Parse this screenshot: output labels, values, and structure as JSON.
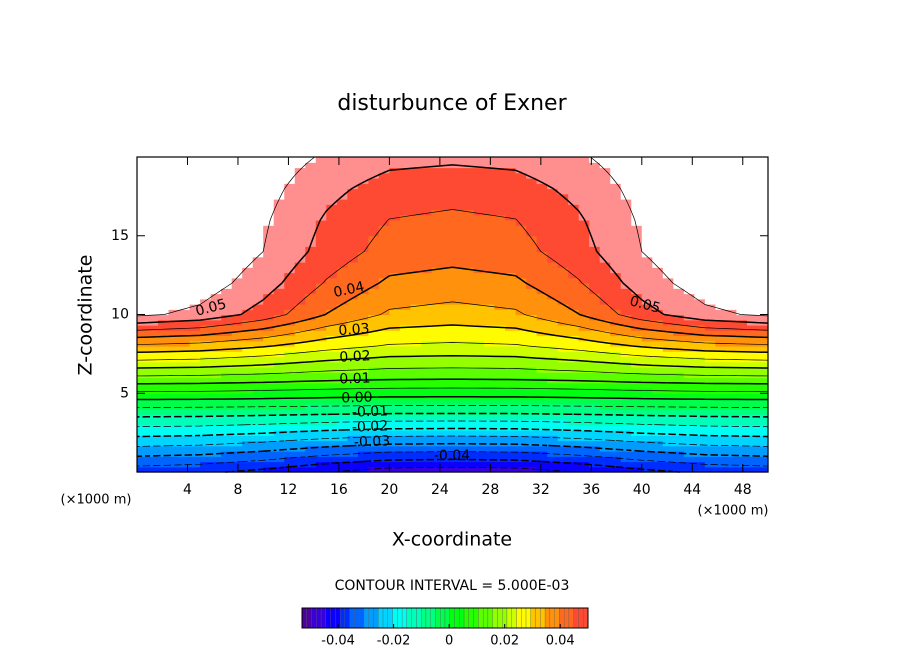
{
  "chart_data": {
    "type": "contour",
    "title": "disturbunce of Exner",
    "xlabel": "X-coordinate",
    "ylabel": "Z-coordinate",
    "x_unit_label": "(×1000 m)",
    "x": [
      0,
      5,
      10,
      15,
      20,
      25,
      30,
      35,
      40,
      45,
      50
    ],
    "y": [
      0,
      2,
      4,
      6,
      8,
      10,
      12,
      14,
      16,
      18,
      20
    ],
    "z": [
      [
        -0.038,
        -0.039,
        -0.0415,
        -0.045,
        -0.0475,
        -0.048,
        -0.0475,
        -0.045,
        -0.0415,
        -0.039,
        -0.038
      ],
      [
        -0.022,
        -0.0226,
        -0.0241,
        -0.0262,
        -0.0277,
        -0.028,
        -0.0277,
        -0.0262,
        -0.0241,
        -0.0226,
        -0.022
      ],
      [
        -0.006,
        -0.0061,
        -0.0064,
        -0.0067,
        -0.007,
        -0.007,
        -0.007,
        -0.0067,
        -0.0064,
        -0.0061,
        -0.006
      ],
      [
        0.014,
        0.0137,
        0.013,
        0.0119,
        0.0112,
        0.011,
        0.0112,
        0.0119,
        0.013,
        0.0137,
        0.014
      ],
      [
        0.034,
        0.033,
        0.0305,
        0.027,
        0.0245,
        0.024,
        0.0245,
        0.027,
        0.0305,
        0.033,
        0.034
      ],
      [
        0.056,
        0.0537,
        0.048,
        0.0399,
        0.0342,
        0.033,
        0.0342,
        0.0399,
        0.048,
        0.0537,
        0.056
      ],
      [
        0.06,
        0.0578,
        0.0523,
        0.0446,
        0.0391,
        0.038,
        0.0391,
        0.0446,
        0.0523,
        0.0578,
        0.06
      ],
      [
        0.062,
        0.06,
        0.055,
        0.048,
        0.043,
        0.042,
        0.043,
        0.048,
        0.055,
        0.06,
        0.062
      ],
      [
        0.062,
        0.0602,
        0.0557,
        0.0494,
        0.0449,
        0.044,
        0.0449,
        0.0494,
        0.0557,
        0.0602,
        0.062
      ],
      [
        0.062,
        0.0605,
        0.0568,
        0.0515,
        0.0478,
        0.047,
        0.0478,
        0.0515,
        0.0568,
        0.0605,
        0.062
      ],
      [
        0.062,
        0.0609,
        0.0581,
        0.0543,
        0.0516,
        0.051,
        0.0516,
        0.0543,
        0.0581,
        0.0609,
        0.062
      ]
    ],
    "xlim": [
      0,
      50
    ],
    "ylim": [
      0,
      20
    ],
    "xticks": [
      4,
      8,
      12,
      16,
      20,
      24,
      28,
      32,
      36,
      40,
      44,
      48
    ],
    "yticks": [
      5,
      10,
      15
    ],
    "contour_interval": {
      "value": 0.005,
      "label": "CONTOUR INTERVAL = 5.000E-03"
    },
    "contour_labels": [
      "0.05",
      "0.04",
      "0.05",
      "0.03",
      "0.02",
      "0.01",
      "0.00",
      "-0.01",
      "-0.02",
      "-0.03",
      "-0.04"
    ],
    "colorbar": {
      "clim": [
        -0.053,
        0.05
      ],
      "ticks": [
        {
          "value": -0.04,
          "label": "-0.04"
        },
        {
          "value": -0.02,
          "label": "-0.02"
        },
        0,
        {
          "value": 0.02,
          "label": "0.02"
        },
        {
          "value": 0.04,
          "label": "0.04"
        }
      ]
    }
  }
}
